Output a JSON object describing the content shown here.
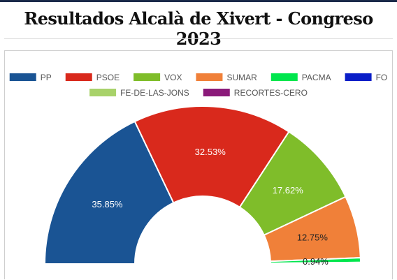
{
  "page": {
    "title": "Resultados Alcalà de Xivert - Congreso 2023"
  },
  "chart_data": {
    "type": "pie",
    "variant": "semicircle-donut",
    "title": "",
    "legend_position": "top",
    "series": [
      {
        "name": "PP",
        "value": 35.85,
        "label": "35.85%",
        "color": "#1a5494"
      },
      {
        "name": "PSOE",
        "value": 32.53,
        "label": "32.53%",
        "color": "#d9291c"
      },
      {
        "name": "VOX",
        "value": 17.62,
        "label": "17.62%",
        "color": "#7fbd2a"
      },
      {
        "name": "SUMAR",
        "value": 12.75,
        "label": "12.75%",
        "color": "#f08039"
      },
      {
        "name": "PACMA",
        "value": 0.94,
        "label": "0.94%",
        "color": "#00e64d"
      },
      {
        "name": "FO",
        "value": 0.16,
        "label": "",
        "color": "#0a1ec8"
      },
      {
        "name": "FE-DE-LAS-JONS",
        "value": 0.1,
        "label": "",
        "color": "#a8d26a"
      },
      {
        "name": "RECORTES-CERO",
        "value": 0.05,
        "label": "",
        "color": "#8b1a7a"
      }
    ]
  }
}
